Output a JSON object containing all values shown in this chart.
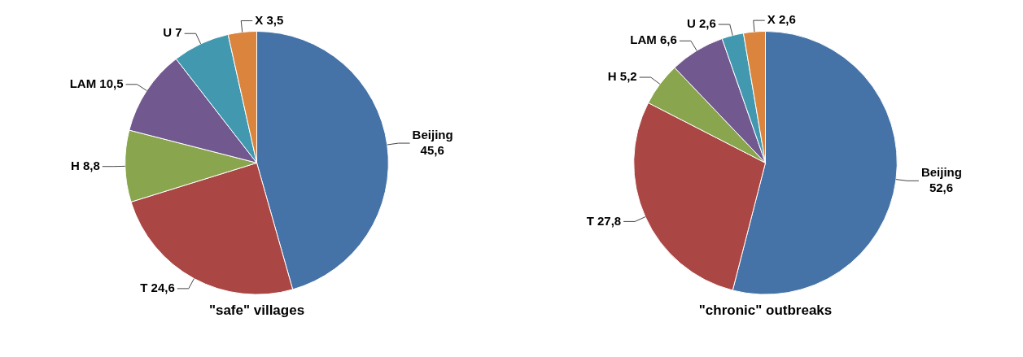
{
  "chart_data": [
    {
      "type": "pie",
      "title": "\"safe\" villages",
      "categories": [
        "Beijing",
        "T",
        "H",
        "LAM",
        "U",
        "X"
      ],
      "values": [
        45.6,
        24.6,
        8.8,
        10.5,
        7,
        3.5
      ],
      "value_labels": [
        "45,6",
        "24,6",
        "8,8",
        "10,5",
        "7",
        "3,5"
      ],
      "colors": [
        "#4572a7",
        "#aa4643",
        "#89a54e",
        "#71588f",
        "#4198af",
        "#db843d"
      ],
      "legend": false
    },
    {
      "type": "pie",
      "title": "\"chronic\" outbreaks",
      "categories": [
        "Beijing",
        "T",
        "H",
        "LAM",
        "U",
        "X"
      ],
      "values": [
        52.6,
        27.8,
        5.2,
        6.6,
        2.6,
        2.6
      ],
      "value_labels": [
        "52,6",
        "27,8",
        "5,2",
        "6,6",
        "2,6",
        "2,6"
      ],
      "colors": [
        "#4572a7",
        "#aa4643",
        "#89a54e",
        "#71588f",
        "#4198af",
        "#db843d"
      ],
      "legend": false
    }
  ]
}
